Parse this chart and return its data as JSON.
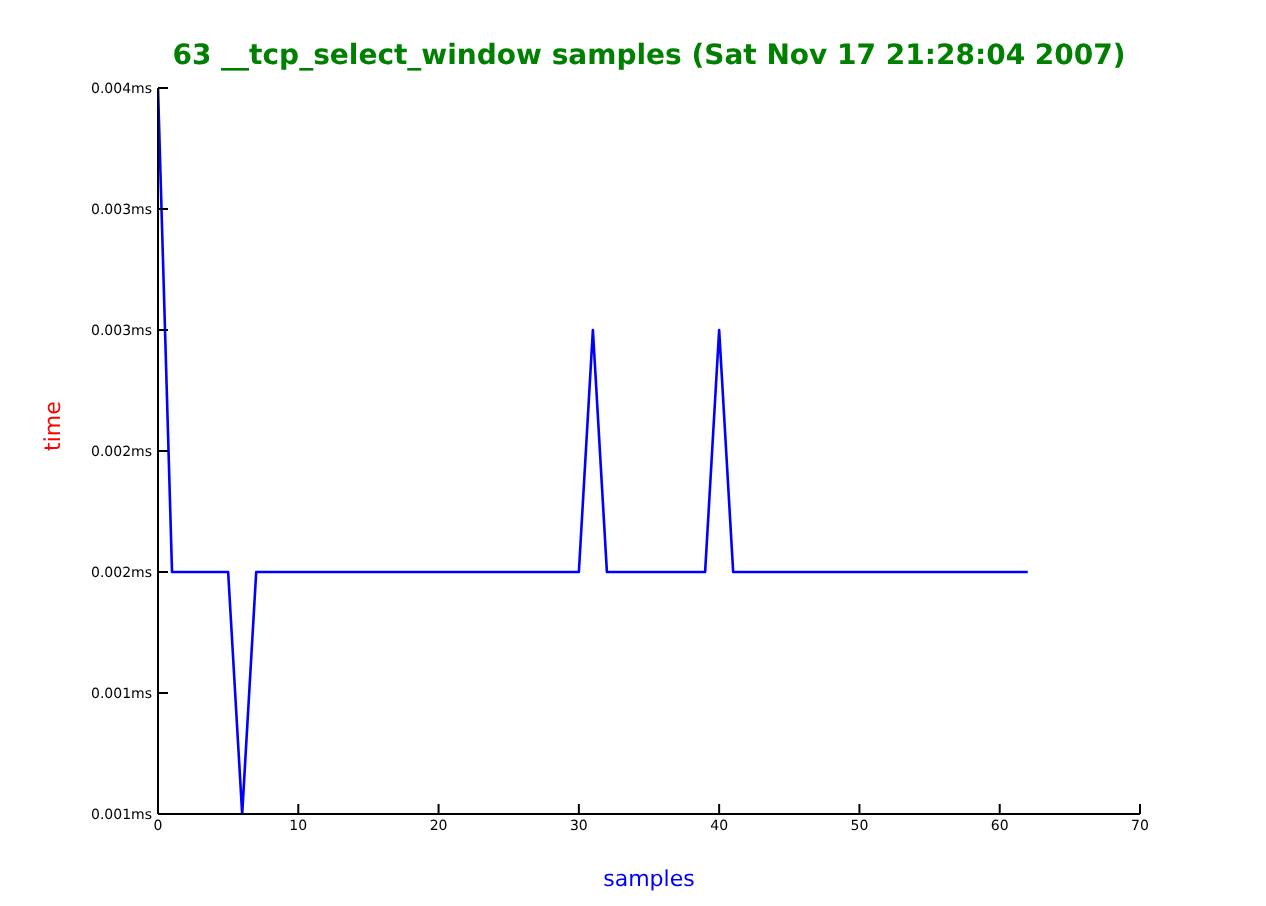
{
  "chart_data": {
    "type": "line",
    "title": "63 __tcp_select_window samples (Sat Nov 17 21:28:04 2007)",
    "xlabel": "samples",
    "ylabel": "time",
    "x": [
      0,
      1,
      2,
      3,
      4,
      5,
      6,
      7,
      8,
      9,
      10,
      11,
      12,
      13,
      14,
      15,
      16,
      17,
      18,
      19,
      20,
      21,
      22,
      23,
      24,
      25,
      26,
      27,
      28,
      29,
      30,
      31,
      32,
      33,
      34,
      35,
      36,
      37,
      38,
      39,
      40,
      41,
      42,
      43,
      44,
      45,
      46,
      47,
      48,
      49,
      50,
      51,
      52,
      53,
      54,
      55,
      56,
      57,
      58,
      59,
      60,
      61,
      62
    ],
    "series": [
      {
        "color": "#0000ff",
        "values": [
          0.004,
          0.002,
          0.002,
          0.002,
          0.002,
          0.002,
          0.001,
          0.002,
          0.002,
          0.002,
          0.002,
          0.002,
          0.002,
          0.002,
          0.002,
          0.002,
          0.002,
          0.002,
          0.002,
          0.002,
          0.002,
          0.002,
          0.002,
          0.002,
          0.002,
          0.002,
          0.002,
          0.002,
          0.002,
          0.002,
          0.002,
          0.003,
          0.002,
          0.002,
          0.002,
          0.002,
          0.002,
          0.002,
          0.002,
          0.002,
          0.003,
          0.002,
          0.002,
          0.002,
          0.002,
          0.002,
          0.002,
          0.002,
          0.002,
          0.002,
          0.002,
          0.002,
          0.002,
          0.002,
          0.002,
          0.002,
          0.002,
          0.002,
          0.002,
          0.002,
          0.002,
          0.002,
          0.002
        ]
      }
    ],
    "xlim": [
      0,
      70
    ],
    "xticks": [
      0,
      10,
      20,
      30,
      40,
      50,
      60,
      70
    ],
    "ylim": [
      0.001,
      0.004
    ],
    "yticks": [
      {
        "value": 0.001,
        "label": "0.001ms"
      },
      {
        "value": 0.0015,
        "label": "0.001ms"
      },
      {
        "value": 0.002,
        "label": "0.002ms"
      },
      {
        "value": 0.0025,
        "label": "0.002ms"
      },
      {
        "value": 0.003,
        "label": "0.003ms"
      },
      {
        "value": 0.0035,
        "label": "0.003ms"
      },
      {
        "value": 0.004,
        "label": "0.004ms"
      }
    ],
    "grid": false,
    "legend": false,
    "marker": "none",
    "line_style": "solid"
  }
}
